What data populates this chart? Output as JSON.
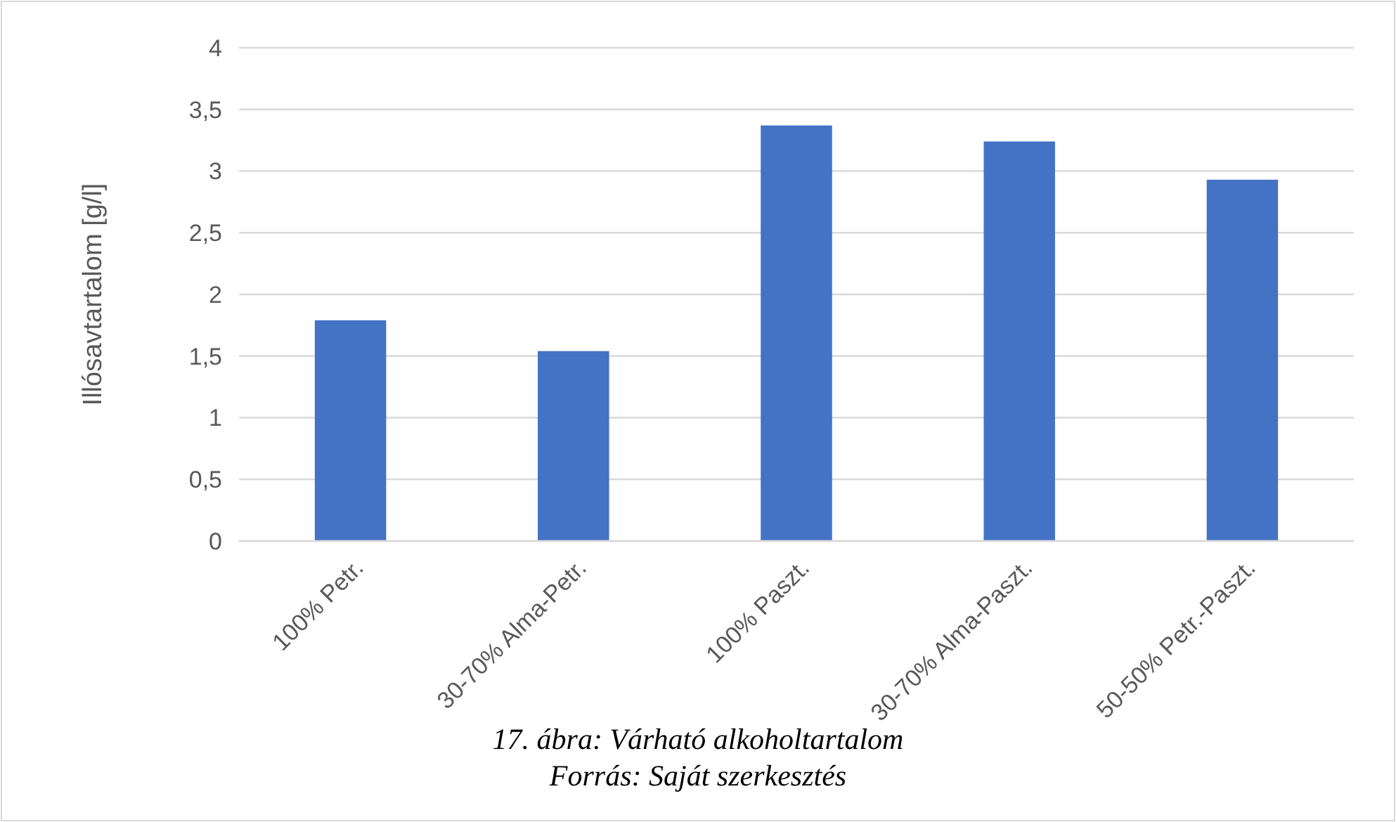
{
  "chart_data": {
    "type": "bar",
    "ylabel": "Illósavtartalom [g/l]",
    "categories": [
      "100% Petr.",
      "30-70% Alma-Petr.",
      "100% Paszt.",
      "30-70% Alma-Paszt.",
      "50-50% Petr.-Paszt."
    ],
    "values": [
      1.79,
      1.54,
      3.37,
      3.24,
      2.93
    ],
    "color": "#4472c4",
    "ylim": [
      0,
      4
    ],
    "yticks": [
      0,
      {
        "value": 0.5,
        "label": "0,5"
      },
      1,
      {
        "value": 1.5,
        "label": "1,5"
      },
      2,
      {
        "value": 2.5,
        "label": "2,5"
      },
      3,
      {
        "value": 3.5,
        "label": "3,5"
      },
      4
    ],
    "grid": "y",
    "annotations": [
      "17. ábra: Várható alkoholtartalom",
      "Forrás: Saját szerkesztés"
    ]
  }
}
